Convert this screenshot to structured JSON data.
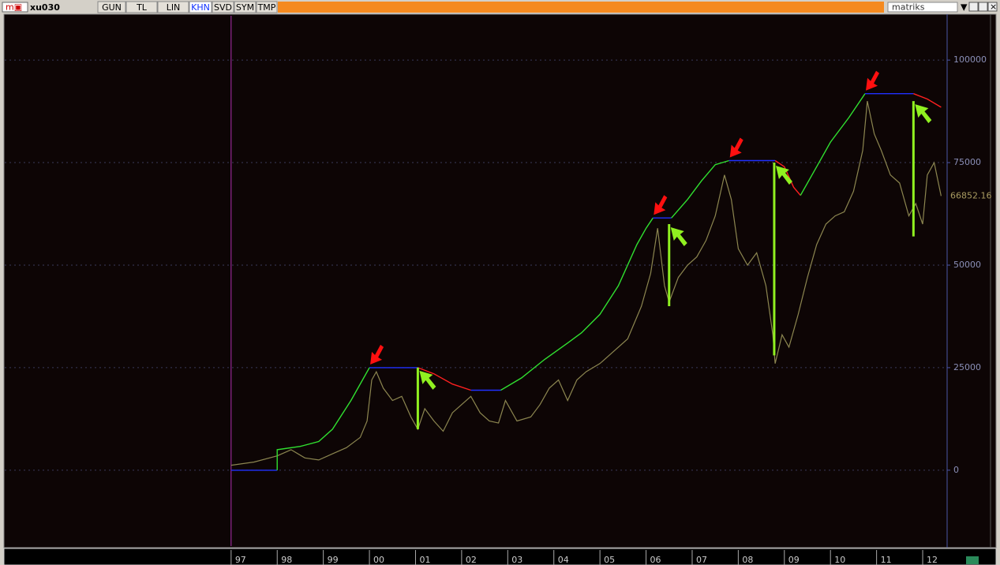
{
  "toolbar": {
    "symbol": "xu030",
    "buttons": [
      "GUN",
      "TL",
      "LIN",
      "KHN",
      "SVD",
      "SYM",
      "TMP"
    ],
    "active_button": 3,
    "brand": "matriks"
  },
  "chart_data": {
    "type": "line",
    "xlim": [
      1992.09,
      2012.53
    ],
    "xticks": [
      {
        "value": 1997,
        "label": "97"
      },
      {
        "value": 1998,
        "label": "98"
      },
      {
        "value": 1999,
        "label": "99"
      },
      {
        "value": 2000,
        "label": "00"
      },
      {
        "value": 2001,
        "label": "01"
      },
      {
        "value": 2002,
        "label": "02"
      },
      {
        "value": 2003,
        "label": "03"
      },
      {
        "value": 2004,
        "label": "04"
      },
      {
        "value": 2005,
        "label": "05"
      },
      {
        "value": 2006,
        "label": "06"
      },
      {
        "value": 2007,
        "label": "07"
      },
      {
        "value": 2008,
        "label": "08"
      },
      {
        "value": 2009,
        "label": "09"
      },
      {
        "value": 2010,
        "label": "10"
      },
      {
        "value": 2011,
        "label": "11"
      },
      {
        "value": 2012,
        "label": "12"
      }
    ],
    "ylim": [
      -18500,
      110800
    ],
    "yticks": [
      0,
      25000,
      50000,
      75000,
      100000
    ],
    "grid": true,
    "series": [
      {
        "color": "#8c8650",
        "x": [
          1997.0,
          1997.5,
          1998.0,
          1998.3,
          1998.6,
          1998.9,
          1999.2,
          1999.5,
          1999.8,
          1999.95,
          2000.05,
          2000.15,
          2000.3,
          2000.5,
          2000.7,
          2000.9,
          2001.05,
          2001.2,
          2001.4,
          2001.6,
          2001.8,
          2002.0,
          2002.2,
          2002.4,
          2002.6,
          2002.8,
          2002.95,
          2003.2,
          2003.5,
          2003.7,
          2003.9,
          2004.1,
          2004.3,
          2004.5,
          2004.7,
          2005.0,
          2005.3,
          2005.6,
          2005.9,
          2006.1,
          2006.25,
          2006.4,
          2006.5,
          2006.7,
          2006.9,
          2007.1,
          2007.3,
          2007.5,
          2007.7,
          2007.85,
          2008.0,
          2008.2,
          2008.4,
          2008.6,
          2008.75,
          2008.8,
          2008.95,
          2009.1,
          2009.3,
          2009.5,
          2009.7,
          2009.9,
          2010.1,
          2010.3,
          2010.5,
          2010.7,
          2010.8,
          2010.95,
          2011.1,
          2011.3,
          2011.5,
          2011.7,
          2011.85,
          2012.0,
          2012.1,
          2012.25,
          2012.4
        ],
        "values": [
          1200,
          2000,
          3500,
          5000,
          3000,
          2500,
          4000,
          5500,
          8000,
          12000,
          22000,
          24000,
          20000,
          17000,
          18000,
          13000,
          10000,
          15000,
          12000,
          9500,
          14000,
          16000,
          18000,
          14000,
          12000,
          11500,
          17000,
          12000,
          13000,
          16000,
          20000,
          22000,
          17000,
          22000,
          24000,
          26000,
          29000,
          32000,
          40000,
          48000,
          59000,
          45000,
          41000,
          47000,
          50000,
          52000,
          56000,
          62000,
          72000,
          66000,
          54000,
          50000,
          53000,
          45000,
          33000,
          26000,
          33000,
          30000,
          38000,
          47000,
          55000,
          60000,
          62000,
          63000,
          68000,
          78000,
          90000,
          82000,
          78000,
          72000,
          70000,
          62000,
          65000,
          60000,
          72000,
          75000,
          66852.16
        ]
      },
      {
        "color": "#2030ff",
        "x": [
          1997.0,
          1998.0
        ],
        "values": [
          0,
          0
        ]
      },
      {
        "color": "#30e030",
        "x": [
          1998.0,
          1998.0,
          1998.5,
          1998.9,
          1999.2,
          1999.6,
          2000.0
        ],
        "values": [
          0,
          5000,
          5800,
          7000,
          10000,
          17000,
          25000
        ]
      },
      {
        "color": "#2030ff",
        "x": [
          2000.0,
          2001.05
        ],
        "values": [
          25000,
          25000
        ]
      },
      {
        "color": "#ff2020",
        "x": [
          2001.05,
          2001.4,
          2001.8,
          2002.2
        ],
        "values": [
          25000,
          23500,
          21000,
          19500
        ]
      },
      {
        "color": "#2030ff",
        "x": [
          2002.2,
          2002.85
        ],
        "values": [
          19500,
          19500
        ]
      },
      {
        "color": "#30e030",
        "x": [
          2002.85,
          2003.3,
          2003.8,
          2004.3,
          2004.6,
          2005.0,
          2005.4,
          2005.8,
          2006.0,
          2006.15
        ],
        "values": [
          19500,
          22500,
          27000,
          31000,
          33500,
          38000,
          45000,
          55000,
          59000,
          61500
        ]
      },
      {
        "color": "#2030ff",
        "x": [
          2006.15,
          2006.55
        ],
        "values": [
          61500,
          61500
        ]
      },
      {
        "color": "#30e030",
        "x": [
          2006.55,
          2006.9,
          2007.2,
          2007.5,
          2007.8
        ],
        "values": [
          61500,
          66000,
          70500,
          74500,
          75500
        ]
      },
      {
        "color": "#2030ff",
        "x": [
          2007.8,
          2008.8
        ],
        "values": [
          75500,
          75500
        ]
      },
      {
        "color": "#ff2020",
        "x": [
          2008.8,
          2009.0,
          2009.2,
          2009.35
        ],
        "values": [
          75500,
          74000,
          69000,
          67000
        ]
      },
      {
        "color": "#30e030",
        "x": [
          2009.35,
          2009.7,
          2010.0,
          2010.4,
          2010.75
        ],
        "values": [
          67000,
          74000,
          80000,
          86000,
          91800
        ]
      },
      {
        "color": "#2030ff",
        "x": [
          2010.75,
          2011.8
        ],
        "values": [
          91800,
          91800
        ]
      },
      {
        "color": "#ff2020",
        "x": [
          2011.8,
          2012.1,
          2012.4
        ],
        "values": [
          91800,
          90500,
          88500
        ]
      }
    ],
    "drawdowns": [
      {
        "x": 2001.05,
        "values": [
          25000,
          10000
        ]
      },
      {
        "x": 2006.5,
        "values": [
          60000,
          40000
        ]
      },
      {
        "x": 2008.78,
        "values": [
          75000,
          28000
        ]
      },
      {
        "x": 2011.8,
        "values": [
          90000,
          57000
        ]
      }
    ],
    "drawdown_color": "#90f020",
    "peaks": [
      {
        "x": 2000.0,
        "value": 25000
      },
      {
        "x": 2006.15,
        "value": 61500
      },
      {
        "x": 2007.8,
        "value": 75500
      },
      {
        "x": 2010.75,
        "value": 91800
      }
    ],
    "peak_color": "#ff1010"
  }
}
